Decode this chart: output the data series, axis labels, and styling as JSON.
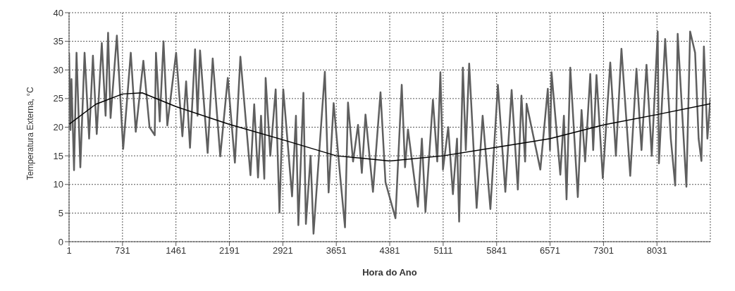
{
  "chart_data": {
    "type": "line",
    "xlabel": "Hora do Ano",
    "ylabel": "Temperatura Externa, °C",
    "xlim": [
      1,
      8760
    ],
    "xticks": [
      1,
      731,
      1461,
      2191,
      2921,
      3651,
      4381,
      5111,
      5841,
      6571,
      7301,
      8031
    ],
    "ylim": [
      0,
      40
    ],
    "yticks": [
      0,
      5,
      10,
      15,
      20,
      25,
      30,
      35,
      40
    ],
    "grid": true,
    "legend": false,
    "marker": "none",
    "line_style": "solid",
    "series": [
      {
        "color": "#5f5f5f",
        "x": [
          1,
          20,
          34,
          69,
          103,
          155,
          213,
          275,
          327,
          379,
          448,
          500,
          534,
          568,
          654,
          740,
          844,
          912,
          1016,
          1100,
          1171,
          1188,
          1240,
          1291,
          1343,
          1463,
          1549,
          1600,
          1653,
          1722,
          1756,
          1790,
          1894,
          1963,
          2066,
          2169,
          2266,
          2341,
          2479,
          2530,
          2582,
          2623,
          2668,
          2686,
          2750,
          2823,
          2875,
          2927,
          3047,
          3100,
          3133,
          3202,
          3236,
          3300,
          3340,
          3495,
          3546,
          3615,
          3700,
          3770,
          3811,
          3880,
          3948,
          4000,
          4050,
          4152,
          4255,
          4323,
          4459,
          4545,
          4590,
          4630,
          4766,
          4820,
          4869,
          4971,
          5030,
          5073,
          5108,
          5180,
          5244,
          5300,
          5329,
          5380,
          5420,
          5466,
          5568,
          5650,
          5756,
          5858,
          5960,
          6046,
          6131,
          6180,
          6230,
          6250,
          6438,
          6540,
          6570,
          6591,
          6711,
          6760,
          6796,
          6847,
          6950,
          7001,
          7050,
          7120,
          7160,
          7205,
          7291,
          7393,
          7470,
          7546,
          7666,
          7751,
          7820,
          7888,
          7960,
          8041,
          8058,
          8143,
          8220,
          8280,
          8314,
          8433,
          8484,
          8552,
          8600,
          8638,
          8672,
          8720,
          8760
        ],
        "values": [
          33,
          19.5,
          28.4,
          12.5,
          33,
          13,
          33,
          18,
          32.5,
          18.8,
          34.7,
          22,
          36.5,
          21.6,
          36,
          16.2,
          33,
          19.2,
          31.6,
          20,
          18.6,
          33,
          21,
          35,
          20.3,
          33,
          18.4,
          28,
          16.4,
          33.6,
          22,
          33.4,
          15.5,
          32,
          14.9,
          28.6,
          13.8,
          32.3,
          11.6,
          24,
          11.2,
          22,
          11,
          28.6,
          15,
          26.6,
          5.1,
          26.6,
          7.9,
          22,
          2.9,
          26,
          3.1,
          15,
          1.4,
          29.7,
          8.6,
          24.2,
          12,
          2.5,
          24.3,
          14,
          20.4,
          12,
          22.2,
          8.7,
          26.1,
          10.4,
          4.1,
          27.4,
          13,
          19.6,
          6.1,
          18,
          5.2,
          24.8,
          14,
          29.6,
          12.6,
          20,
          8.3,
          18,
          3.5,
          30.4,
          16,
          31.1,
          5.9,
          22,
          5.7,
          27.4,
          8.7,
          26.5,
          9.1,
          25.5,
          14,
          24.1,
          12.6,
          26.7,
          16,
          29.6,
          11.7,
          22,
          7.4,
          30.4,
          7.8,
          23,
          14,
          29.3,
          16,
          29.1,
          11.1,
          31.3,
          15,
          33.7,
          11.5,
          30.2,
          16,
          30.9,
          15,
          36.7,
          13.7,
          35.4,
          18,
          9.8,
          36.3,
          9.6,
          36.7,
          33,
          18,
          14.1,
          34.1,
          18,
          25
        ]
      },
      {
        "type": "line",
        "color": "#000000",
        "x": [
          1,
          365,
          731,
          1000,
          1461,
          2191,
          2921,
          3651,
          4381,
          5111,
          5841,
          6571,
          7301,
          8031,
          8760
        ],
        "values": [
          20.5,
          24,
          25.8,
          26,
          23.6,
          20.5,
          17.8,
          15,
          14.1,
          15,
          16.5,
          18,
          20.4,
          22.2,
          24.1
        ]
      }
    ]
  }
}
